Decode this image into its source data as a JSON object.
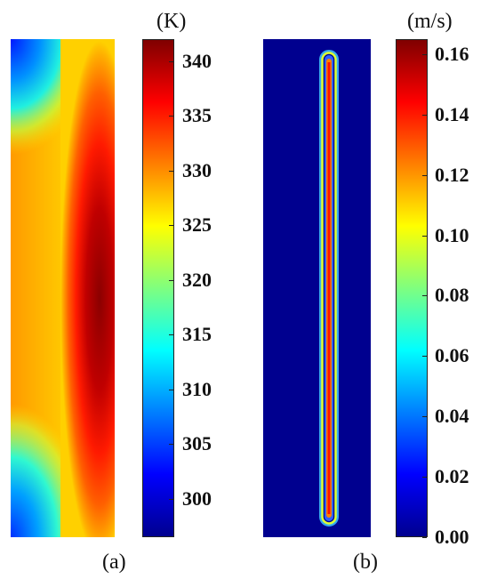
{
  "panels": [
    {
      "caption": "(a)",
      "quantity": "temperature",
      "unit": "(K)",
      "colorbar": {
        "colormap": "jet",
        "min": 296.5,
        "max": 342.0,
        "ticks": [
          "340",
          "335",
          "330",
          "325",
          "320",
          "315",
          "310",
          "305",
          "300"
        ]
      }
    },
    {
      "caption": "(b)",
      "quantity": "velocity",
      "unit": "(m/s)",
      "colorbar": {
        "colormap": "jet",
        "min": 0.0,
        "max": 0.165,
        "ticks": [
          "0.16",
          "0.14",
          "0.12",
          "0.10",
          "0.08",
          "0.06",
          "0.04",
          "0.02",
          "0.00"
        ]
      }
    }
  ]
}
